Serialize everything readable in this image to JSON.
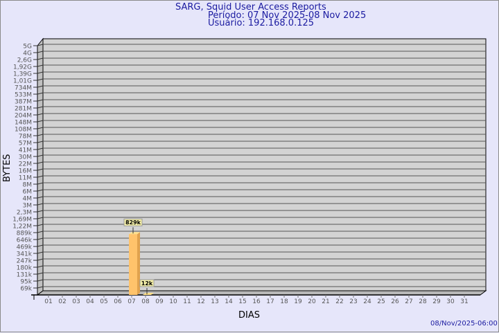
{
  "chart_data": {
    "type": "bar",
    "title": "SARG, Squid User Access Reports",
    "subtitle_period": "Período: 07 Nov 2025-08 Nov 2025",
    "subtitle_user": "Usuário: 192.168.0.125",
    "xlabel": "DIAS",
    "ylabel": "BYTES",
    "y_scale": "log",
    "y_tick_labels": [
      "5G",
      "4G",
      "2,6G",
      "1,92G",
      "1,39G",
      "1,01G",
      "734M",
      "533M",
      "387M",
      "281M",
      "204M",
      "148M",
      "108M",
      "78M",
      "57M",
      "41M",
      "30M",
      "22M",
      "16M",
      "11M",
      "8M",
      "6M",
      "4M",
      "3M",
      "2,3M",
      "1,69M",
      "1,22M",
      "889k",
      "646k",
      "469k",
      "341k",
      "247k",
      "180k",
      "131k",
      "95k",
      "69k"
    ],
    "categories": [
      "01",
      "02",
      "03",
      "04",
      "05",
      "06",
      "07",
      "08",
      "09",
      "10",
      "11",
      "12",
      "13",
      "14",
      "15",
      "16",
      "17",
      "18",
      "19",
      "20",
      "21",
      "22",
      "23",
      "24",
      "25",
      "26",
      "27",
      "28",
      "29",
      "30",
      "31"
    ],
    "bars": [
      {
        "x": "07",
        "value": 829000,
        "label": "829k"
      },
      {
        "x": "08",
        "value": 12000,
        "label": "12k"
      }
    ],
    "grid": true,
    "colors": {
      "background": "#e6e6fa",
      "plot": "#d3d3d3",
      "bar": "#ffc36b",
      "bar_side": "#e0a24e",
      "label_bg": "#f5f0a8",
      "text": "#1a1aa0"
    }
  },
  "footer_timestamp": "08/Nov/2025-06:00"
}
